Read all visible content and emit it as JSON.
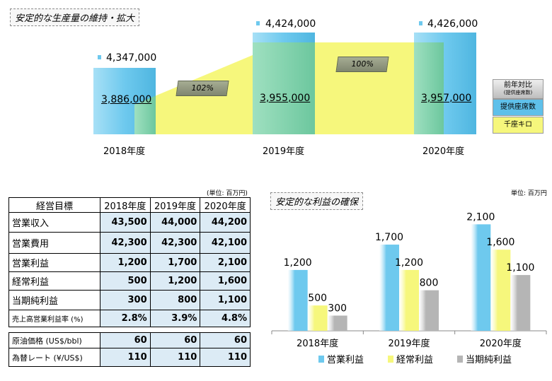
{
  "top_chart": {
    "title": "安定的な生産量の維持・拡大",
    "years": [
      "2018年度",
      "2019年度",
      "2020年度"
    ],
    "seats": [
      "4,347,000",
      "4,424,000",
      "4,426,000"
    ],
    "seat_km": [
      "3,886,000",
      "3,955,000",
      "3,957,000"
    ],
    "ratios": [
      "102%",
      "100%"
    ],
    "legend": {
      "yoy": "前年対比",
      "yoy_sub": "(提供座席数)",
      "seats": "提供座席数",
      "seat_km": "千座キロ"
    },
    "colors": {
      "seats": "#6ec9ee",
      "seat_km": "#f6f77c",
      "overlap": "#7fd4b0"
    }
  },
  "table": {
    "unit": "(単位: 百万円)",
    "header": [
      "経営目標",
      "2018年度",
      "2019年度",
      "2020年度"
    ],
    "rows": [
      {
        "label": "営業収入",
        "values": [
          "43,500",
          "44,000",
          "44,200"
        ]
      },
      {
        "label": "営業費用",
        "values": [
          "42,300",
          "42,300",
          "42,100"
        ]
      },
      {
        "label": "営業利益",
        "values": [
          "1,200",
          "1,700",
          "2,100"
        ]
      },
      {
        "label": "経常利益",
        "values": [
          "500",
          "1,200",
          "1,600"
        ]
      },
      {
        "label": "当期純利益",
        "values": [
          "300",
          "800",
          "1,100"
        ]
      },
      {
        "label": "売上高営業利益率 (%)",
        "values": [
          "2.8%",
          "3.9%",
          "4.8%"
        ]
      }
    ],
    "assumptions": [
      {
        "label": "原油価格 (US$/bbl)",
        "values": [
          "60",
          "60",
          "60"
        ]
      },
      {
        "label": "為替レート (¥/US$)",
        "values": [
          "110",
          "110",
          "110"
        ]
      }
    ]
  },
  "chart_data": {
    "type": "bar",
    "title": "安定的な利益の確保",
    "unit": "単位: 百万円",
    "categories": [
      "2018年度",
      "2019年度",
      "2020年度"
    ],
    "series": [
      {
        "name": "営業利益",
        "values": [
          1200,
          1700,
          2100
        ],
        "labels": [
          "1,200",
          "1,700",
          "2,100"
        ],
        "color": "#6ec9ee"
      },
      {
        "name": "経常利益",
        "values": [
          500,
          1200,
          1600
        ],
        "labels": [
          "500",
          "1,200",
          "1,600"
        ],
        "color": "#f6f77c"
      },
      {
        "name": "当期純利益",
        "values": [
          300,
          800,
          1100
        ],
        "labels": [
          "300",
          "800",
          "1,100"
        ],
        "color": "#b5b5b5"
      }
    ],
    "ylim": [
      0,
      2300
    ],
    "legend": "bottom"
  }
}
